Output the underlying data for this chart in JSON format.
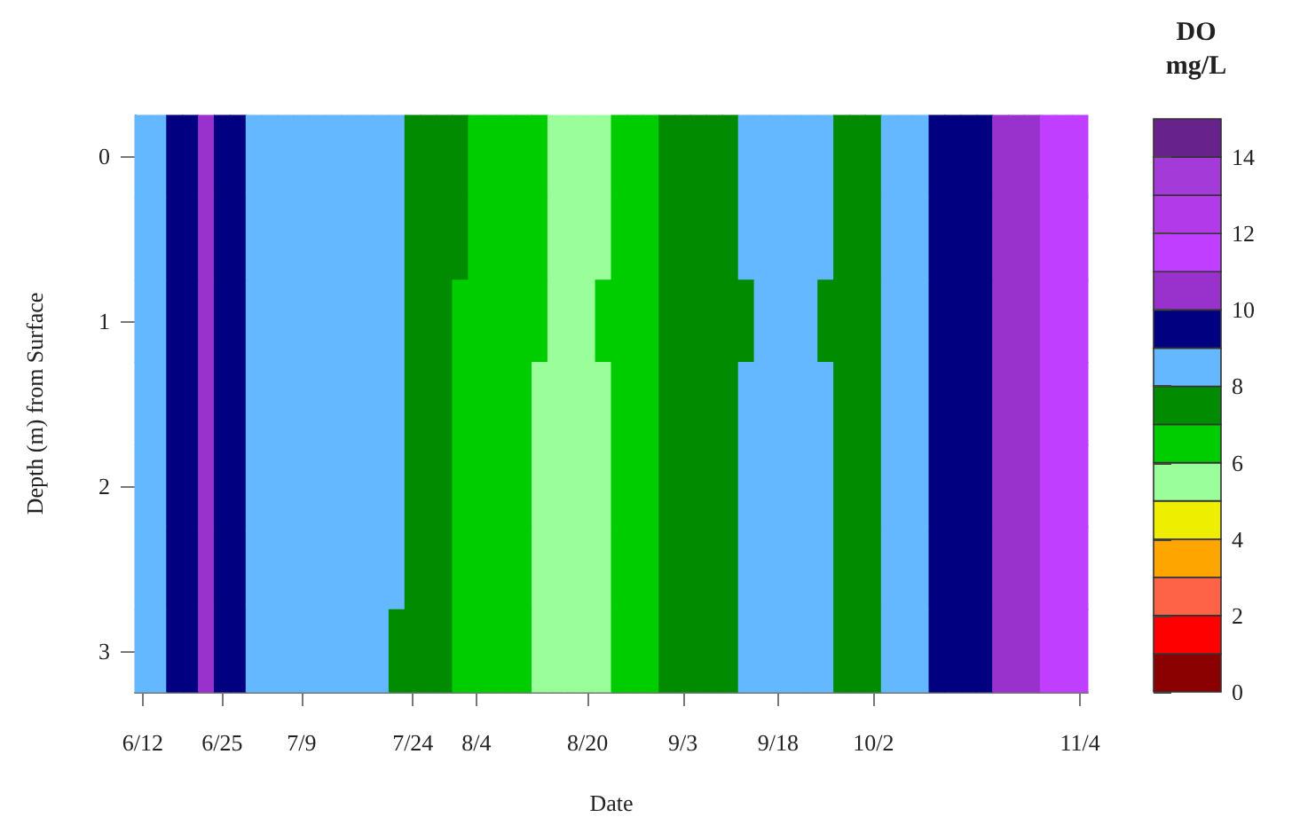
{
  "chart_data": {
    "type": "heatmap",
    "xlabel": "Date",
    "ylabel": "Depth (m) from Surface",
    "clabel": "DO\nmg/L",
    "categories": [
      "6/12",
      null,
      null,
      null,
      null,
      "6/25",
      null,
      null,
      null,
      null,
      "7/9",
      null,
      null,
      null,
      null,
      null,
      null,
      "7/24",
      null,
      null,
      null,
      "8/4",
      null,
      null,
      null,
      null,
      null,
      null,
      "8/20",
      null,
      null,
      null,
      null,
      null,
      "9/3",
      null,
      null,
      null,
      null,
      null,
      "9/18",
      null,
      null,
      null,
      null,
      null,
      "10/2",
      null,
      null,
      null,
      null,
      null,
      null,
      null,
      null,
      null,
      null,
      null,
      null,
      "11/4"
    ],
    "y_categories": [
      "0",
      null,
      "1",
      null,
      "2",
      null,
      "3"
    ],
    "cells": [
      [
        8.5,
        8.5,
        9.5,
        9.5,
        10.5,
        9.5,
        9.5,
        8.5,
        8.5,
        8.5,
        8.5,
        8.5,
        8.5,
        8.5,
        8.5,
        8.5,
        8.5,
        7.5,
        7.5,
        7.5,
        7.5,
        6.5,
        6.5,
        6.5,
        6.5,
        6.5,
        5.5,
        5.5,
        5.5,
        5.5,
        6.5,
        6.5,
        6.5,
        7.5,
        7.5,
        7.5,
        7.5,
        7.5,
        8.5,
        8.5,
        8.5,
        8.5,
        8.5,
        8.5,
        7.5,
        7.5,
        7.5,
        8.5,
        8.5,
        8.5,
        9.5,
        9.5,
        9.5,
        9.5,
        10.5,
        10.5,
        10.5,
        11.5,
        11.5,
        11.5
      ],
      [
        8.5,
        8.5,
        9.5,
        9.5,
        10.5,
        9.5,
        9.5,
        8.5,
        8.5,
        8.5,
        8.5,
        8.5,
        8.5,
        8.5,
        8.5,
        8.5,
        8.5,
        7.5,
        7.5,
        7.5,
        7.5,
        6.5,
        6.5,
        6.5,
        6.5,
        6.5,
        5.5,
        5.5,
        5.5,
        5.5,
        6.5,
        6.5,
        6.5,
        7.5,
        7.5,
        7.5,
        7.5,
        7.5,
        8.5,
        8.5,
        8.5,
        8.5,
        8.5,
        8.5,
        7.5,
        7.5,
        7.5,
        8.5,
        8.5,
        8.5,
        9.5,
        9.5,
        9.5,
        9.5,
        10.5,
        10.5,
        10.5,
        11.5,
        11.5,
        11.5
      ],
      [
        8.5,
        8.5,
        9.5,
        9.5,
        10.5,
        9.5,
        9.5,
        8.5,
        8.5,
        8.5,
        8.5,
        8.5,
        8.5,
        8.5,
        8.5,
        8.5,
        8.5,
        7.5,
        7.5,
        7.5,
        6.5,
        6.5,
        6.5,
        6.5,
        6.5,
        6.5,
        5.5,
        5.5,
        5.5,
        6.5,
        6.5,
        6.5,
        6.5,
        7.5,
        7.5,
        7.5,
        7.5,
        7.5,
        7.5,
        8.5,
        8.5,
        8.5,
        8.5,
        7.5,
        7.5,
        7.5,
        7.5,
        8.5,
        8.5,
        8.5,
        9.5,
        9.5,
        9.5,
        9.5,
        10.5,
        10.5,
        10.5,
        11.5,
        11.5,
        11.5
      ],
      [
        8.5,
        8.5,
        9.5,
        9.5,
        10.5,
        9.5,
        9.5,
        8.5,
        8.5,
        8.5,
        8.5,
        8.5,
        8.5,
        8.5,
        8.5,
        8.5,
        8.5,
        7.5,
        7.5,
        7.5,
        6.5,
        6.5,
        6.5,
        6.5,
        6.5,
        5.5,
        5.5,
        5.5,
        5.5,
        5.5,
        6.5,
        6.5,
        6.5,
        7.5,
        7.5,
        7.5,
        7.5,
        7.5,
        8.5,
        8.5,
        8.5,
        8.5,
        8.5,
        8.5,
        7.5,
        7.5,
        7.5,
        8.5,
        8.5,
        8.5,
        9.5,
        9.5,
        9.5,
        9.5,
        10.5,
        10.5,
        10.5,
        11.5,
        11.5,
        11.5
      ],
      [
        8.5,
        8.5,
        9.5,
        9.5,
        10.5,
        9.5,
        9.5,
        8.5,
        8.5,
        8.5,
        8.5,
        8.5,
        8.5,
        8.5,
        8.5,
        8.5,
        8.5,
        7.5,
        7.5,
        7.5,
        6.5,
        6.5,
        6.5,
        6.5,
        6.5,
        5.5,
        5.5,
        5.5,
        5.5,
        5.5,
        6.5,
        6.5,
        6.5,
        7.5,
        7.5,
        7.5,
        7.5,
        7.5,
        8.5,
        8.5,
        8.5,
        8.5,
        8.5,
        8.5,
        7.5,
        7.5,
        7.5,
        8.5,
        8.5,
        8.5,
        9.5,
        9.5,
        9.5,
        9.5,
        10.5,
        10.5,
        10.5,
        11.5,
        11.5,
        11.5
      ],
      [
        8.5,
        8.5,
        9.5,
        9.5,
        10.5,
        9.5,
        9.5,
        8.5,
        8.5,
        8.5,
        8.5,
        8.5,
        8.5,
        8.5,
        8.5,
        8.5,
        8.5,
        7.5,
        7.5,
        7.5,
        6.5,
        6.5,
        6.5,
        6.5,
        6.5,
        5.5,
        5.5,
        5.5,
        5.5,
        5.5,
        6.5,
        6.5,
        6.5,
        7.5,
        7.5,
        7.5,
        7.5,
        7.5,
        8.5,
        8.5,
        8.5,
        8.5,
        8.5,
        8.5,
        7.5,
        7.5,
        7.5,
        8.5,
        8.5,
        8.5,
        9.5,
        9.5,
        9.5,
        9.5,
        10.5,
        10.5,
        10.5,
        11.5,
        11.5,
        11.5
      ],
      [
        8.5,
        8.5,
        9.5,
        9.5,
        10.5,
        9.5,
        9.5,
        8.5,
        8.5,
        8.5,
        8.5,
        8.5,
        8.5,
        8.5,
        8.5,
        8.5,
        7.5,
        7.5,
        7.5,
        7.5,
        6.5,
        6.5,
        6.5,
        6.5,
        6.5,
        5.5,
        5.5,
        5.5,
        5.5,
        5.5,
        6.5,
        6.5,
        6.5,
        7.5,
        7.5,
        7.5,
        7.5,
        7.5,
        8.5,
        8.5,
        8.5,
        8.5,
        8.5,
        8.5,
        7.5,
        7.5,
        7.5,
        8.5,
        8.5,
        8.5,
        9.5,
        9.5,
        9.5,
        9.5,
        10.5,
        10.5,
        10.5,
        11.5,
        11.5,
        11.5
      ]
    ],
    "clim": [
      0,
      15
    ],
    "cticks": [
      0,
      2,
      4,
      6,
      8,
      10,
      12,
      14
    ],
    "colors": [
      "#8b0000",
      "#ff0000",
      "#ff6347",
      "#ffa500",
      "#eeee00",
      "#9aff9a",
      "#00cd00",
      "#008b00",
      "#63b8ff",
      "#000080",
      "#9932cc",
      "#bf3eff",
      "#b23ae8",
      "#a43ad8",
      "#68228b"
    ]
  }
}
